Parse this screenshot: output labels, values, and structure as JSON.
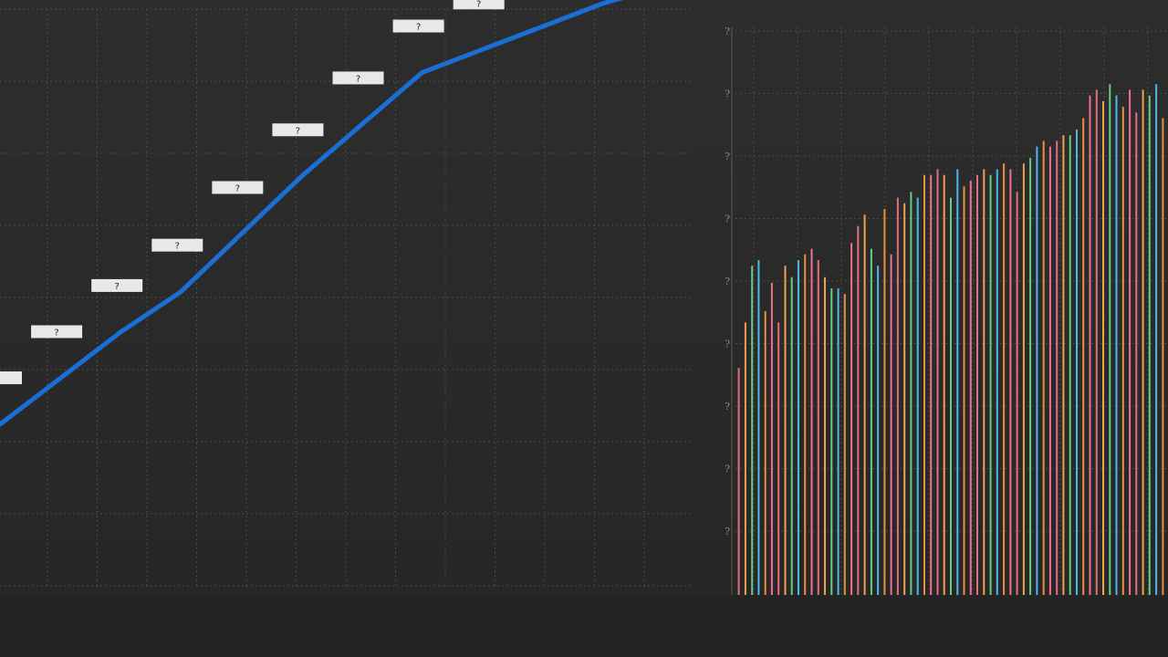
{
  "chart_data": [
    {
      "type": "line",
      "title": "",
      "xlabel": "",
      "ylabel": "",
      "grid": true,
      "x": [
        1,
        2,
        3,
        4,
        5,
        6,
        7,
        8,
        9,
        10,
        11,
        12
      ],
      "xlim": [
        1,
        12.5
      ],
      "ylim": [
        0,
        100
      ],
      "series": [
        {
          "color": "#1a6fd6",
          "values": [
            28,
            36,
            44,
            51,
            61,
            71,
            80,
            89,
            93,
            97,
            101,
            104
          ]
        }
      ],
      "point_labels": [
        "?",
        "?",
        "?",
        "?",
        "?",
        "?",
        "?",
        "?",
        "?",
        "?",
        "?",
        "?"
      ]
    },
    {
      "type": "bar",
      "title": "",
      "xlabel": "",
      "ylabel": "",
      "grid": true,
      "y_tick_labels": [
        "?",
        "?",
        "?",
        "?",
        "?",
        "?",
        "?",
        "?",
        "?"
      ],
      "ylim": [
        0,
        100
      ],
      "palette": [
        "#e2707a",
        "#f0a050",
        "#66cc88",
        "#4ab8e8",
        "#e89040",
        "#f07090"
      ],
      "values": [
        40,
        48,
        58,
        59,
        50,
        55,
        48,
        58,
        56,
        59,
        60,
        61,
        59,
        56,
        54,
        54,
        53,
        62,
        65,
        67,
        61,
        58,
        68,
        60,
        70,
        69,
        71,
        70,
        74,
        74,
        75,
        74,
        70,
        75,
        72,
        73,
        74,
        75,
        74,
        75,
        76,
        75,
        71,
        76,
        77,
        79,
        80,
        79,
        80,
        81,
        81,
        82,
        84,
        88,
        89,
        87,
        90,
        88,
        86,
        89,
        85,
        89,
        88,
        90,
        84
      ]
    }
  ]
}
